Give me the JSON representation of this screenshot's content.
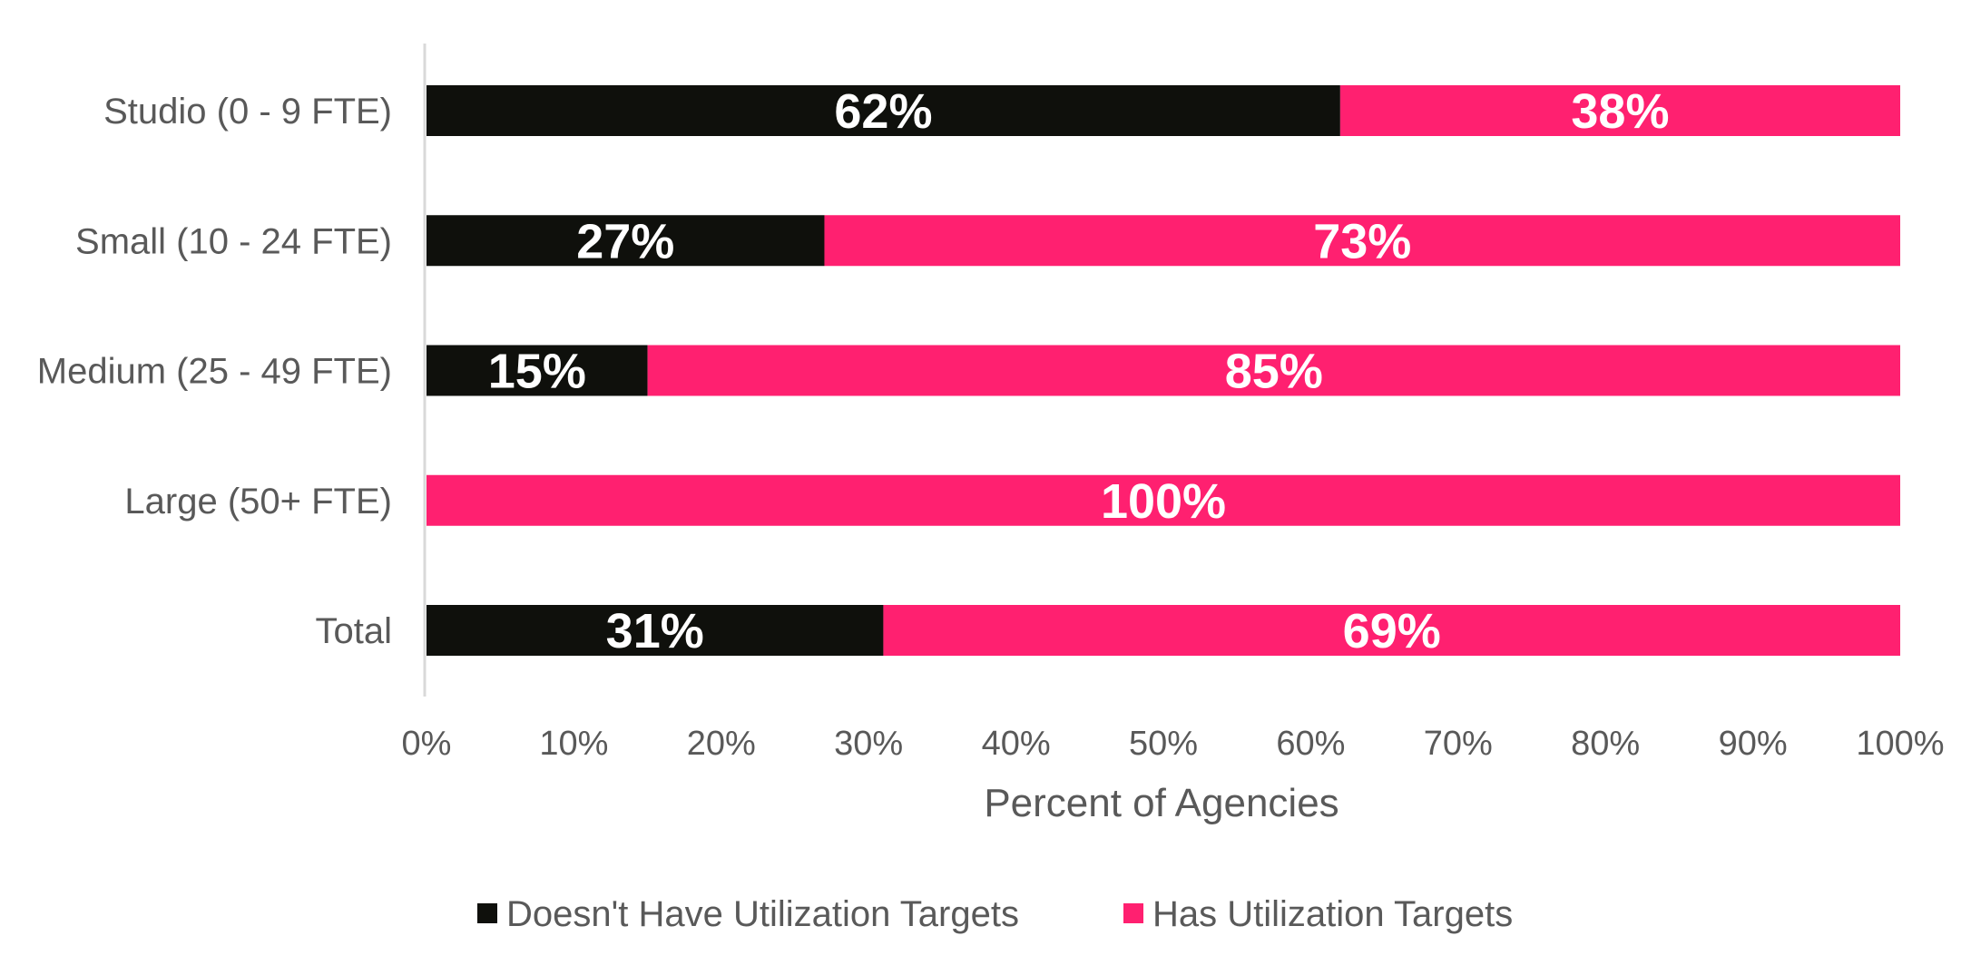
{
  "chart_data": {
    "type": "bar",
    "orientation": "horizontal",
    "stacked": true,
    "categories": [
      "Studio (0 - 9 FTE)",
      "Small (10 - 24 FTE)",
      "Medium (25 - 49 FTE)",
      "Large (50+ FTE)",
      "Total"
    ],
    "series": [
      {
        "name": "Doesn't Have Utilization Targets",
        "color": "#0f100c",
        "values": [
          62,
          27,
          15,
          0,
          31
        ],
        "labels": [
          "62%",
          "27%",
          "15%",
          "",
          "31%"
        ]
      },
      {
        "name": "Has Utilization Targets",
        "color": "#ff2070",
        "values": [
          38,
          73,
          85,
          100,
          69
        ],
        "labels": [
          "38%",
          "73%",
          "85%",
          "100%",
          "69%"
        ]
      }
    ],
    "title": "",
    "xlabel": "Percent of Agencies",
    "ylabel": "",
    "xlim": [
      0,
      100
    ],
    "xticks": [
      "0%",
      "10%",
      "20%",
      "30%",
      "40%",
      "50%",
      "60%",
      "70%",
      "80%",
      "90%",
      "100%"
    ],
    "grid": false,
    "legend": "bottom-center"
  }
}
